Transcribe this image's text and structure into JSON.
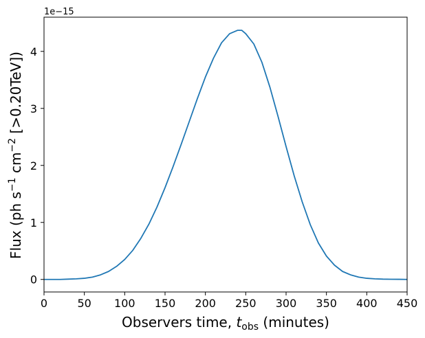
{
  "chart_data": {
    "type": "line",
    "title": "",
    "xlabel": {
      "prefix": "Observers time, ",
      "var": "t",
      "sub": "obs",
      "suffix": " (minutes)"
    },
    "ylabel": {
      "prefix": "Flux (ph s",
      "exp1": "−1",
      "mid": " cm",
      "exp2": "−2",
      "suffix": " [>0.20TeV])"
    },
    "offset_text": "1e−15",
    "xlim": [
      0,
      450
    ],
    "ylim": [
      -0.22,
      4.6
    ],
    "x_ticks": [
      0,
      50,
      100,
      150,
      200,
      250,
      300,
      350,
      400,
      450
    ],
    "y_ticks": [
      0,
      1,
      2,
      3,
      4
    ],
    "grid": false,
    "legend": "none",
    "color": "#1f77b4",
    "series": [
      {
        "x": [
          0,
          10,
          20,
          30,
          40,
          50,
          60,
          70,
          80,
          90,
          100,
          110,
          120,
          130,
          140,
          150,
          160,
          170,
          180,
          190,
          200,
          210,
          220,
          230,
          240,
          245,
          250,
          260,
          270,
          280,
          290,
          300,
          310,
          320,
          330,
          340,
          350,
          360,
          370,
          380,
          390,
          400,
          410,
          420,
          430,
          440,
          450
        ],
        "y": [
          0.0,
          0.0,
          0.0,
          0.005,
          0.01,
          0.02,
          0.04,
          0.08,
          0.14,
          0.23,
          0.35,
          0.51,
          0.72,
          0.97,
          1.27,
          1.61,
          1.98,
          2.37,
          2.77,
          3.17,
          3.55,
          3.88,
          4.15,
          4.31,
          4.37,
          4.37,
          4.31,
          4.13,
          3.81,
          3.37,
          2.86,
          2.33,
          1.82,
          1.36,
          0.96,
          0.64,
          0.41,
          0.25,
          0.14,
          0.08,
          0.04,
          0.02,
          0.01,
          0.005,
          0.003,
          0.002,
          0.0
        ]
      }
    ]
  }
}
